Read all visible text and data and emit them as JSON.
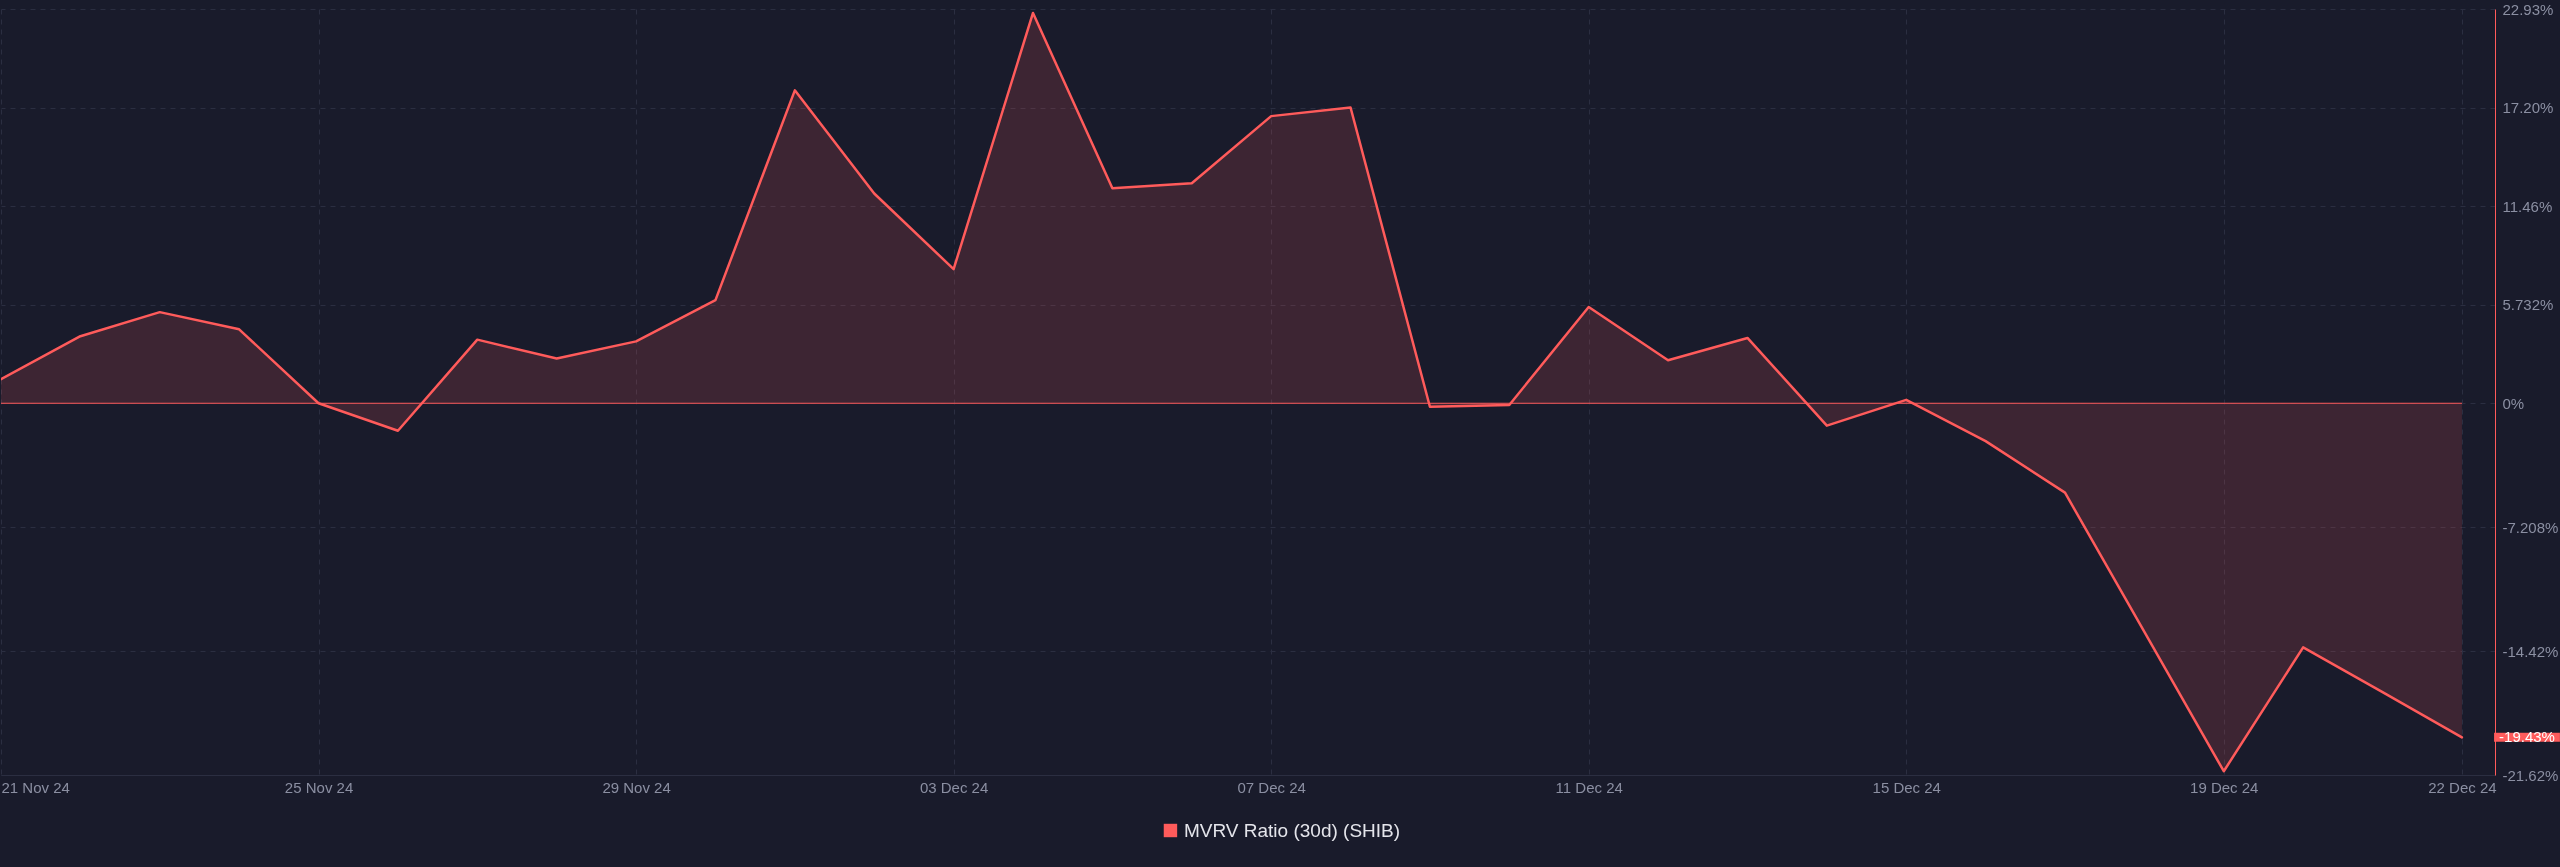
{
  "chart_data": {
    "type": "area",
    "x": [
      "--11-21",
      "--11-22",
      "--11-23",
      "--11-24",
      "--11-25",
      "--11-26",
      "--11-27",
      "--11-28",
      "--11-29",
      "--11-30",
      "--12-01",
      "--12-02",
      "--12-03",
      "--12-04",
      "--12-05",
      "--12-06",
      "--12-07",
      "--12-08",
      "--12-09",
      "--12-10",
      "--12-11",
      "--12-12",
      "--12-13",
      "--12-14",
      "--12-15",
      "--12-16",
      "--12-17",
      "--12-18",
      "--12-19",
      "--12-20",
      "--12-21",
      "--12-22"
    ],
    "series": [
      {
        "name": "MVRV Ratio (30d) (SHIB)",
        "color": "#ff5b5b",
        "values": [
          1.4,
          3.9,
          5.3,
          4.3,
          0,
          -1.6,
          3.7,
          2.6,
          3.6,
          6.0,
          18.2,
          12.2,
          7.8,
          22.7,
          12.5,
          12.8,
          16.7,
          17.2,
          -0.2,
          -0.1,
          5.6,
          2.5,
          3.8,
          -1.3,
          0.2,
          -2.2,
          -5.2,
          -13.3,
          -21.4,
          -14.2,
          -16.8,
          -19.43
        ]
      }
    ],
    "xlim": [
      "--11-21",
      "--12-22T10:00"
    ],
    "xticks": [
      {
        "value": "--11-21",
        "label": "21 Nov 24"
      },
      {
        "value": "--11-25",
        "label": "25 Nov 24"
      },
      {
        "value": "--11-29",
        "label": "29 Nov 24"
      },
      {
        "value": "--12-03",
        "label": "03 Dec 24"
      },
      {
        "value": "--12-07",
        "label": "07 Dec 24"
      },
      {
        "value": "--12-11",
        "label": "11 Dec 24"
      },
      {
        "value": "--12-15",
        "label": "15 Dec 24"
      },
      {
        "value": "--12-19",
        "label": "19 Dec 24"
      },
      {
        "value": "--12-22",
        "label": "22 Dec 24"
      }
    ],
    "ylim": [
      -21.62,
      22.93
    ],
    "yticks": [
      {
        "value": 22.93,
        "label": "22.93%"
      },
      {
        "value": 17.2,
        "label": "17.20%"
      },
      {
        "value": 11.46,
        "label": "11.46%"
      },
      {
        "value": 5.732,
        "label": "5.732%"
      },
      {
        "value": 0,
        "label": "0%"
      },
      {
        "value": -7.208,
        "label": "-7.208%"
      },
      {
        "value": -14.42,
        "label": "-14.42%"
      },
      {
        "value": -21.62,
        "label": "-21.62%"
      }
    ],
    "grid": true,
    "legend": "bottom",
    "ref_lines": [
      {
        "axis": "y",
        "value": 0,
        "color": "#ff5b5b"
      }
    ],
    "annotations": [
      {
        "text": "-19.43%",
        "x": "--12-22",
        "y": -19.43
      }
    ]
  }
}
